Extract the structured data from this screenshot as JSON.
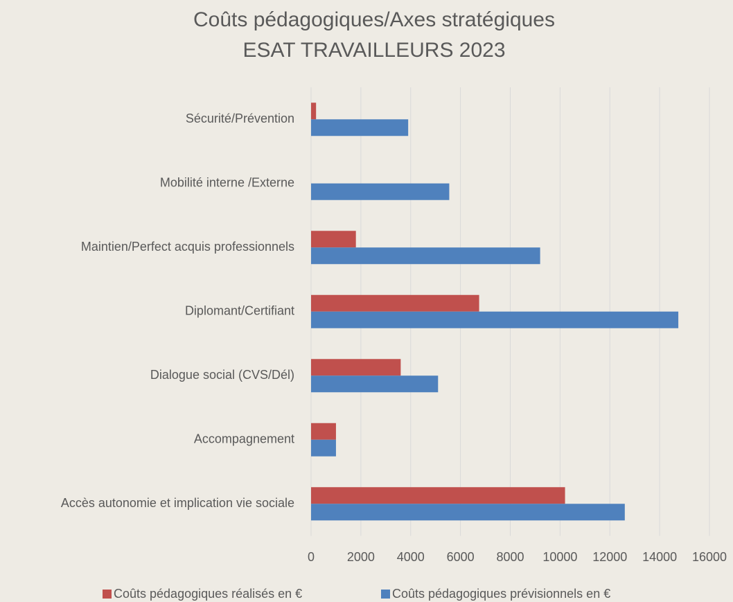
{
  "chart_data": {
    "type": "barh",
    "title": [
      "Coûts pédagogiques/Axes stratégiques",
      "ESAT TRAVAILLEURS 2023"
    ],
    "categories": [
      "Sécurité/Prévention",
      "Mobilité interne /Externe",
      "Maintien/Perfect acquis professionnels",
      "Diplomant/Certifiant",
      "Dialogue social (CVS/Dél)",
      "Accompagnement",
      "Accès autonomie et implication vie sociale"
    ],
    "series": [
      {
        "name": "Coûts pédagogiques réalisés en €",
        "color": "#c0504d",
        "values": [
          200,
          0,
          1800,
          6750,
          3600,
          1000,
          10200
        ]
      },
      {
        "name": "Coûts pédagogiques prévisionnels en €",
        "color": "#4f81bd",
        "values": [
          3900,
          5550,
          9200,
          14750,
          5100,
          1000,
          12600
        ]
      }
    ],
    "xlim": [
      0,
      16000
    ],
    "xticks": [
      0,
      2000,
      4000,
      6000,
      8000,
      10000,
      12000,
      14000,
      16000
    ],
    "grid": true,
    "legend": "bottom"
  }
}
